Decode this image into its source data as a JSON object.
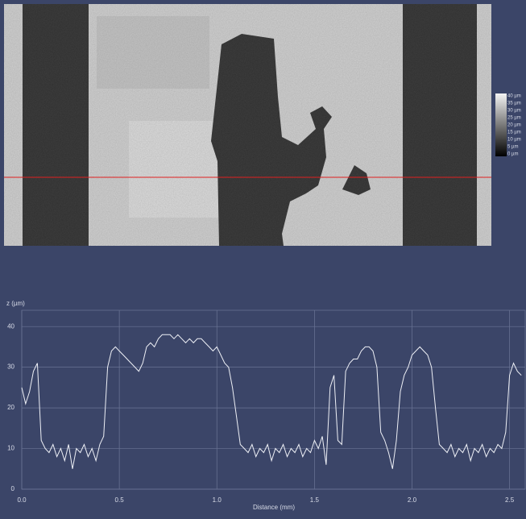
{
  "chart_data": {
    "type": "line",
    "colorbar_labels": [
      "40 µm",
      "35 µm",
      "30 µm",
      "25 µm",
      "20 µm",
      "15 µm",
      "10 µm",
      "5 µm",
      "0 µm"
    ],
    "y_label": "z (µm)",
    "x_label": "Distance (mm)",
    "xlim": [
      0,
      2.58
    ],
    "ylim": [
      0,
      44
    ],
    "xticks": [
      {
        "value": 0,
        "label": "0.0"
      },
      0.5,
      {
        "value": 1,
        "label": "1.0"
      },
      1.5,
      {
        "value": 2,
        "label": "2.0"
      },
      2.5
    ],
    "yticks": [
      0,
      10,
      20,
      30,
      40
    ],
    "grid": true,
    "x": [
      0,
      0.02,
      0.04,
      0.06,
      0.08,
      0.1,
      0.12,
      0.14,
      0.16,
      0.18,
      0.2,
      0.22,
      0.24,
      0.26,
      0.28,
      0.3,
      0.32,
      0.34,
      0.36,
      0.38,
      0.4,
      0.42,
      0.44,
      0.46,
      0.48,
      0.5,
      0.52,
      0.54,
      0.56,
      0.58,
      0.6,
      0.62,
      0.64,
      0.66,
      0.68,
      0.7,
      0.72,
      0.74,
      0.76,
      0.78,
      0.8,
      0.82,
      0.84,
      0.86,
      0.88,
      0.9,
      0.92,
      0.94,
      0.96,
      0.98,
      1,
      1.02,
      1.04,
      1.06,
      1.08,
      1.1,
      1.12,
      1.14,
      1.16,
      1.18,
      1.2,
      1.22,
      1.24,
      1.26,
      1.28,
      1.3,
      1.32,
      1.34,
      1.36,
      1.38,
      1.4,
      1.42,
      1.44,
      1.46,
      1.48,
      1.5,
      1.52,
      1.54,
      1.56,
      1.58,
      1.6,
      1.62,
      1.64,
      1.66,
      1.68,
      1.7,
      1.72,
      1.74,
      1.76,
      1.78,
      1.8,
      1.82,
      1.84,
      1.86,
      1.88,
      1.9,
      1.92,
      1.94,
      1.96,
      1.98,
      2,
      2.02,
      2.04,
      2.06,
      2.08,
      2.1,
      2.12,
      2.14,
      2.16,
      2.18,
      2.2,
      2.22,
      2.24,
      2.26,
      2.28,
      2.3,
      2.32,
      2.34,
      2.36,
      2.38,
      2.4,
      2.42,
      2.44,
      2.46,
      2.48,
      2.5,
      2.52,
      2.54,
      2.56
    ],
    "series": [
      {
        "color": "#eef0f6",
        "values": [
          25,
          21,
          24,
          29,
          31,
          12,
          10,
          9,
          11,
          8,
          10,
          7,
          11,
          5,
          10,
          9,
          11,
          8,
          10,
          7,
          11,
          13,
          30,
          34,
          35,
          34,
          33,
          32,
          31,
          30,
          29,
          31,
          35,
          36,
          35,
          37,
          38,
          38,
          38,
          37,
          38,
          37,
          36,
          37,
          36,
          37,
          37,
          36,
          35,
          34,
          35,
          33,
          31,
          30,
          25,
          18,
          11,
          10,
          9,
          11,
          8,
          10,
          9,
          11,
          7,
          10,
          9,
          11,
          8,
          10,
          9,
          11,
          8,
          10,
          9,
          12,
          10,
          13,
          6,
          25,
          28,
          12,
          11,
          29,
          31,
          32,
          32,
          34,
          35,
          35,
          34,
          30,
          14,
          12,
          9,
          5,
          12,
          24,
          28,
          30,
          33,
          34,
          35,
          34,
          33,
          30,
          20,
          11,
          10,
          9,
          11,
          8,
          10,
          9,
          11,
          7,
          10,
          9,
          11,
          8,
          10,
          9,
          11,
          10,
          14,
          28,
          31,
          29,
          28
        ]
      }
    ]
  }
}
